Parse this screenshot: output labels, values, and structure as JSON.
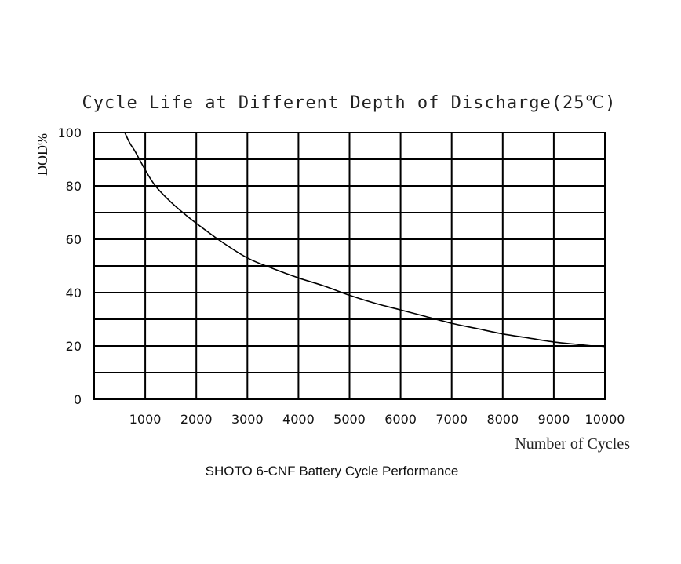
{
  "chart_data": {
    "type": "line",
    "title": "Cycle Life at Different Depth of Discharge(25℃)",
    "xlabel": "Number of Cycles",
    "ylabel": "DOD%",
    "caption": "SHOTO 6-CNF Battery Cycle Performance",
    "xlim": [
      0,
      10000
    ],
    "ylim": [
      0,
      100
    ],
    "x_ticks": [
      "1000",
      "2000",
      "3000",
      "4000",
      "5000",
      "6000",
      "7000",
      "8000",
      "9000",
      "10000"
    ],
    "y_ticks": [
      "0",
      "20",
      "40",
      "60",
      "80",
      "100"
    ],
    "grid": true,
    "series": [
      {
        "x": [
          600,
          700,
          800,
          1000,
          1200,
          1500,
          1800,
          2000,
          2500,
          3000,
          3500,
          4000,
          4500,
          5000,
          5500,
          6000,
          6500,
          7000,
          7500,
          8000,
          8500,
          9000,
          9500,
          10000
        ],
        "y": [
          100,
          96,
          93,
          86,
          80,
          74,
          69,
          66,
          59,
          53,
          49,
          45.5,
          42.5,
          39,
          36,
          33.5,
          31,
          28.5,
          26.5,
          24.5,
          23,
          21.5,
          20.5,
          19.5
        ]
      }
    ]
  }
}
